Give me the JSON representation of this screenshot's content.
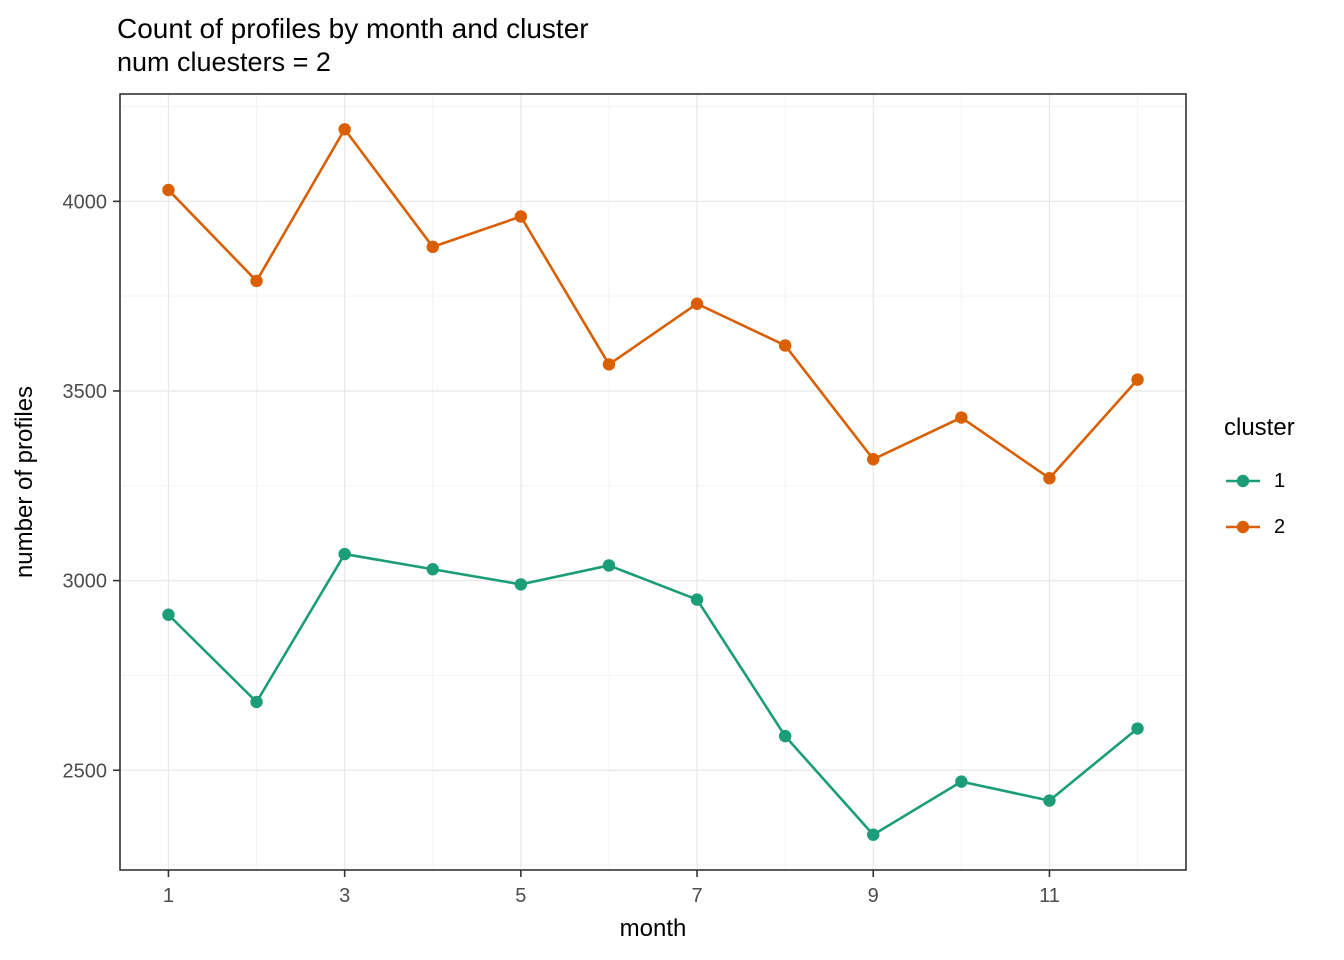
{
  "chart_data": {
    "type": "line",
    "title": "Count of profiles by month and cluster",
    "subtitle": "num cluesters = 2",
    "xlabel": "month",
    "ylabel": "number of profiles",
    "x": [
      1,
      2,
      3,
      4,
      5,
      6,
      7,
      8,
      9,
      10,
      11,
      12
    ],
    "series": [
      {
        "name": "1",
        "color": "#1b9e77",
        "values": [
          2910,
          2680,
          3070,
          3030,
          2990,
          3040,
          2950,
          2590,
          2330,
          2470,
          2420,
          2610
        ]
      },
      {
        "name": "2",
        "color": "#d95f02",
        "values": [
          4030,
          3790,
          4190,
          3880,
          3960,
          3570,
          3730,
          3620,
          3320,
          3430,
          3270,
          3530
        ]
      }
    ],
    "xlim": [
      0.45,
      12.55
    ],
    "ylim": [
      2237,
      4283
    ],
    "x_major_ticks": [
      1,
      3,
      5,
      7,
      9,
      11
    ],
    "x_minor_ticks": [
      2,
      4,
      6,
      8,
      10,
      12
    ],
    "y_major_ticks": [
      2500,
      3000,
      3500,
      4000
    ],
    "y_minor_ticks": [
      2250,
      2750,
      3250,
      3750,
      4250
    ],
    "legend_title": "cluster",
    "legend_position": "right",
    "grid": true
  },
  "colors": {
    "grid_major": "#e8e8e8",
    "grid_minor": "#f3f3f3",
    "panel_border": "#333333",
    "tick_mark": "#333333",
    "tick_label": "#4d4d4d",
    "axis_title": "#000000"
  }
}
